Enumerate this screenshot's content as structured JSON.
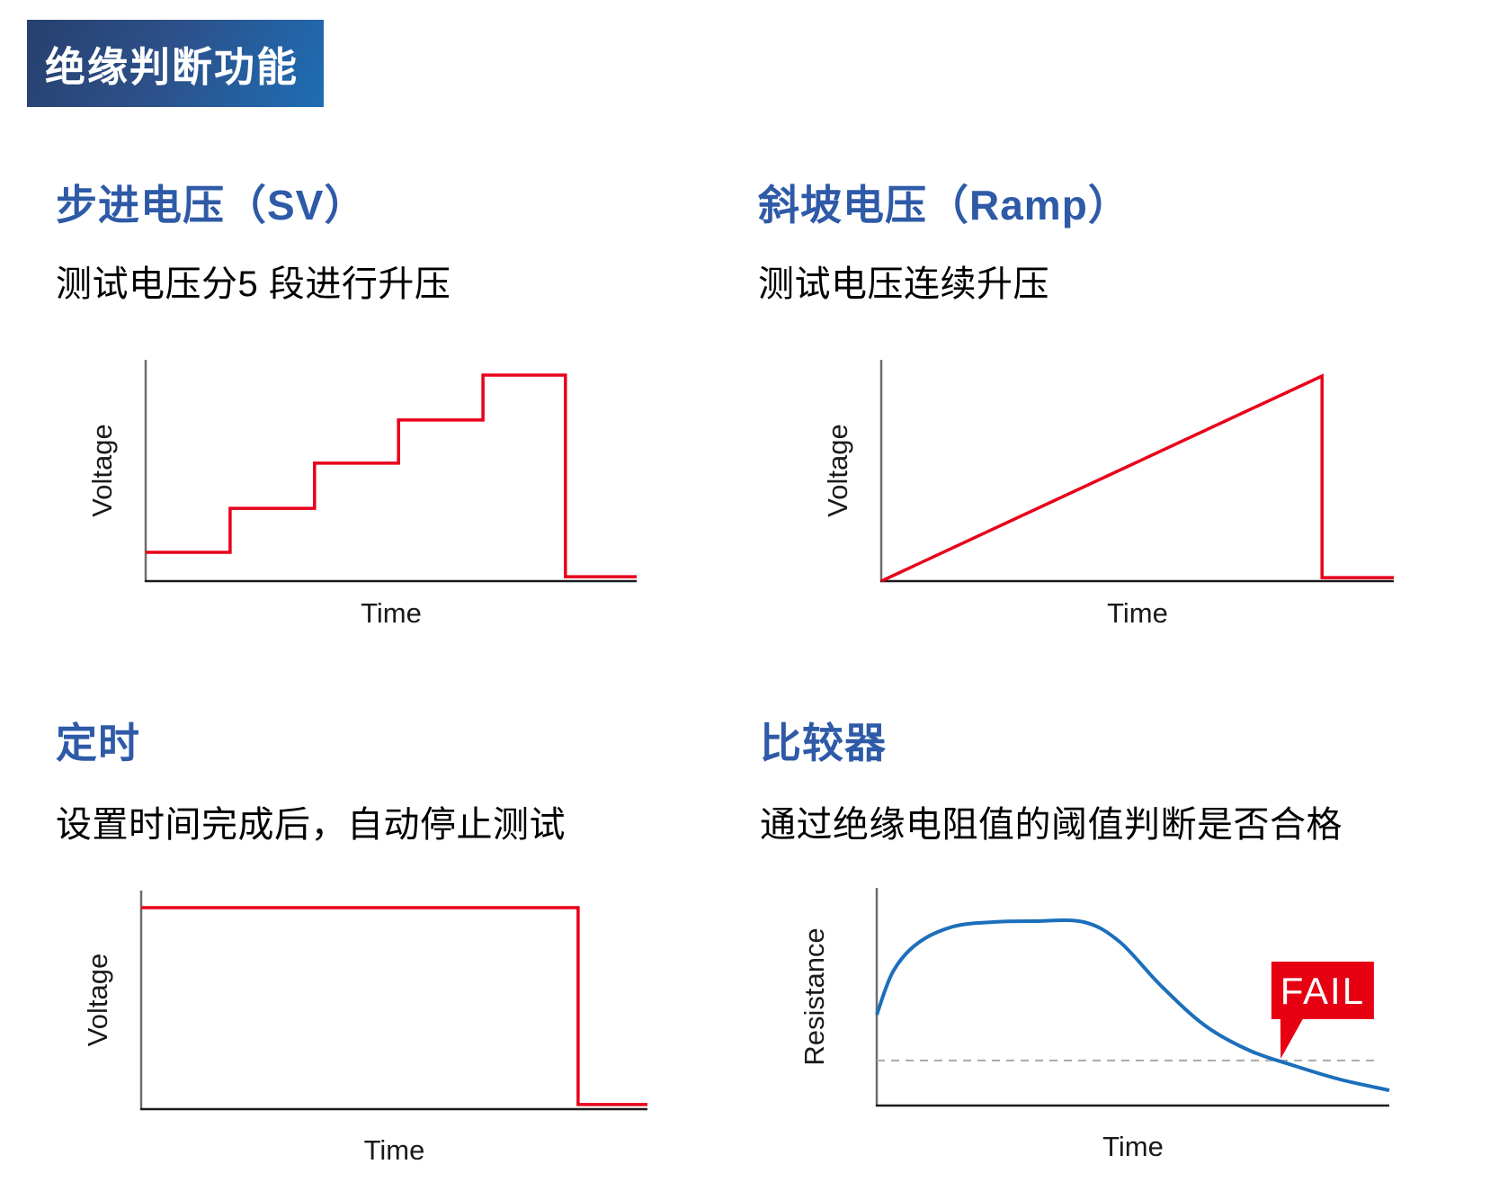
{
  "banner": {
    "title": "绝缘判断功能",
    "gradient_from": "#27406e",
    "gradient_to": "#1e6db4",
    "text_color": "#ffffff"
  },
  "colors": {
    "heading_blue": "#2e5aa7",
    "body_text": "#000000",
    "line_red": "#e8001a",
    "curve_blue": "#1c6fba",
    "axis_y_gray": "#6e6e6e",
    "axis_x_black": "#1a1a1a",
    "threshold_gray": "#a9a9a9",
    "fail_red": "#e60012",
    "fail_text_white": "#ffffff"
  },
  "sections": [
    {
      "id": "step",
      "heading": "步进电压（SV）",
      "description": "测试电压分5 段进行升压"
    },
    {
      "id": "ramp",
      "heading": "斜坡电压（Ramp）",
      "description": "测试电压连续升压"
    },
    {
      "id": "timer",
      "heading": "定时",
      "description": "设置时间完成后，自动停止测试"
    },
    {
      "id": "comparator",
      "heading": "比较器",
      "description": "通过绝缘电阻值的阈值判断是否合格"
    }
  ],
  "chart_data": [
    {
      "id": "step",
      "type": "line",
      "title": "步进电压（SV）",
      "xlabel": "Time",
      "ylabel": "Voltage",
      "line_color": "#e8001a",
      "smooth": false,
      "grid": false,
      "axis_ticks": "none",
      "note": "Test voltage rises in 5 equal steps, then drops to near zero",
      "points_pct": [
        [
          0,
          13
        ],
        [
          17.2,
          13
        ],
        [
          17.2,
          32.9
        ],
        [
          34.4,
          32.9
        ],
        [
          34.4,
          53.3
        ],
        [
          51.5,
          53.3
        ],
        [
          51.5,
          72.8
        ],
        [
          68.7,
          72.8
        ],
        [
          68.7,
          93.1
        ],
        [
          85.5,
          93.1
        ],
        [
          85.5,
          2
        ],
        [
          100,
          2
        ]
      ]
    },
    {
      "id": "ramp",
      "type": "line",
      "title": "斜坡电压（Ramp）",
      "xlabel": "Time",
      "ylabel": "Voltage",
      "line_color": "#e8001a",
      "smooth": false,
      "grid": false,
      "axis_ticks": "none",
      "note": "Test voltage rises continuously (linear ramp), then drops to near zero",
      "points_pct": [
        [
          0,
          0
        ],
        [
          86,
          92.7
        ],
        [
          86,
          1.6
        ],
        [
          100,
          1.6
        ]
      ]
    },
    {
      "id": "timer",
      "type": "line",
      "title": "定时",
      "xlabel": "Time",
      "ylabel": "Voltage",
      "line_color": "#e8001a",
      "smooth": false,
      "grid": false,
      "axis_ticks": "none",
      "note": "Constant voltage held for the set time, then test stops automatically",
      "points_pct": [
        [
          0,
          92.2
        ],
        [
          86.3,
          92.2
        ],
        [
          86.3,
          2.1
        ],
        [
          100,
          2.1
        ]
      ]
    },
    {
      "id": "comparator",
      "type": "line",
      "title": "比较器",
      "xlabel": "Time",
      "ylabel": "Resistance",
      "line_color": "#1c6fba",
      "smooth": true,
      "grid": false,
      "axis_ticks": "none",
      "note": "Resistance rises to a plateau then falls below the dashed threshold where FAIL is flagged",
      "points_pct": [
        [
          0,
          41.7
        ],
        [
          3.2,
          61.6
        ],
        [
          7.9,
          74.4
        ],
        [
          14.9,
          82.2
        ],
        [
          22.8,
          84.3
        ],
        [
          30.7,
          84.7
        ],
        [
          40.4,
          84.3
        ],
        [
          47.4,
          75.2
        ],
        [
          55.3,
          55.4
        ],
        [
          64,
          36.8
        ],
        [
          72.8,
          25.2
        ],
        [
          81.6,
          18.2
        ],
        [
          90.4,
          12
        ],
        [
          100,
          7
        ]
      ],
      "threshold": {
        "y_pct": 20.7,
        "x0_pct": 0,
        "x1_pct": 97.4,
        "color": "#a9a9a9"
      },
      "fail": {
        "label": "FAIL",
        "box_x0_pct": 77,
        "box_x1_pct": 97,
        "box_ytop_pct": 66.1,
        "box_ybot_pct": 39.7,
        "apex_x_pct": 78.8,
        "apex_y_pct": 21.5,
        "color": "#e60012",
        "text_color": "#ffffff"
      }
    }
  ]
}
